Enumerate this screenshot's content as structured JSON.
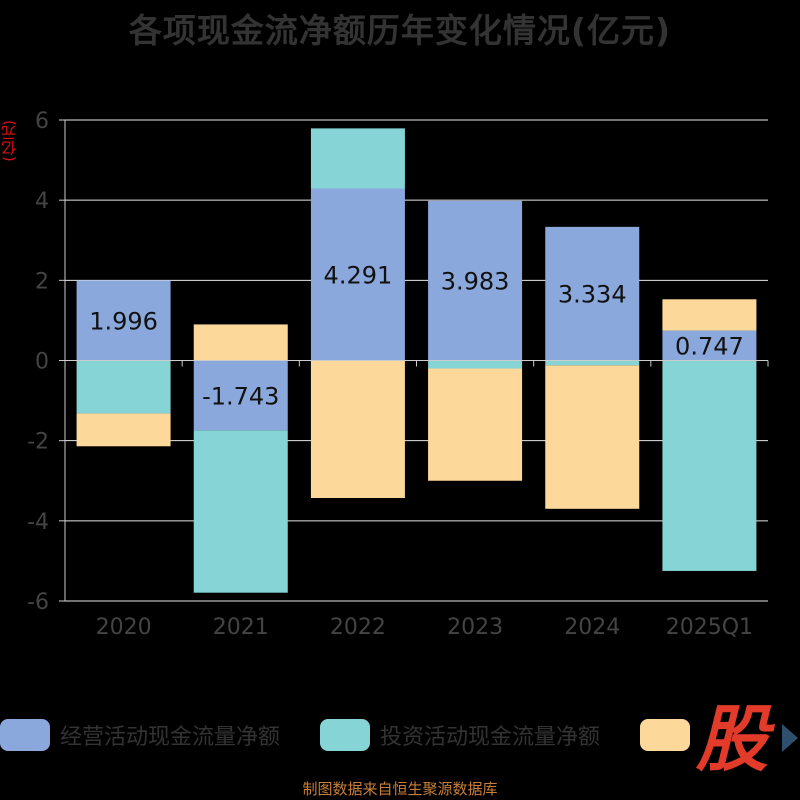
{
  "title": "各项现金流净额历年变化情况(亿元)",
  "source": "制图数据来自恒生聚源数据库",
  "logo_text": "股",
  "chart_data": {
    "type": "bar",
    "stacked": true,
    "title": "各项现金流净额历年变化情况(亿元)",
    "ylabel": "(亿元)",
    "xlabel": "",
    "ylim": [
      -6,
      6
    ],
    "yticks": [
      -6,
      -4,
      -2,
      0,
      2,
      4,
      6
    ],
    "grid": true,
    "legend_position": "bottom",
    "categories": [
      "2020",
      "2021",
      "2022",
      "2023",
      "2024",
      "2025Q1"
    ],
    "series": [
      {
        "name": "经营活动现金流量净额",
        "color": "#8ba8dc",
        "values": [
          1.996,
          -1.743,
          4.291,
          3.983,
          3.334,
          0.747
        ],
        "labels": [
          "1.996",
          "-1.743",
          "4.291",
          "3.983",
          "3.334",
          "0.747"
        ]
      },
      {
        "name": "投资活动现金流量净额",
        "color": "#86d4d6",
        "values": [
          -1.32,
          -4.05,
          1.5,
          -0.2,
          -0.12,
          -5.25
        ]
      },
      {
        "name": "",
        "color": "#fdd89b",
        "values": [
          -0.82,
          0.9,
          -3.43,
          -2.8,
          -3.58,
          0.78
        ]
      }
    ]
  }
}
